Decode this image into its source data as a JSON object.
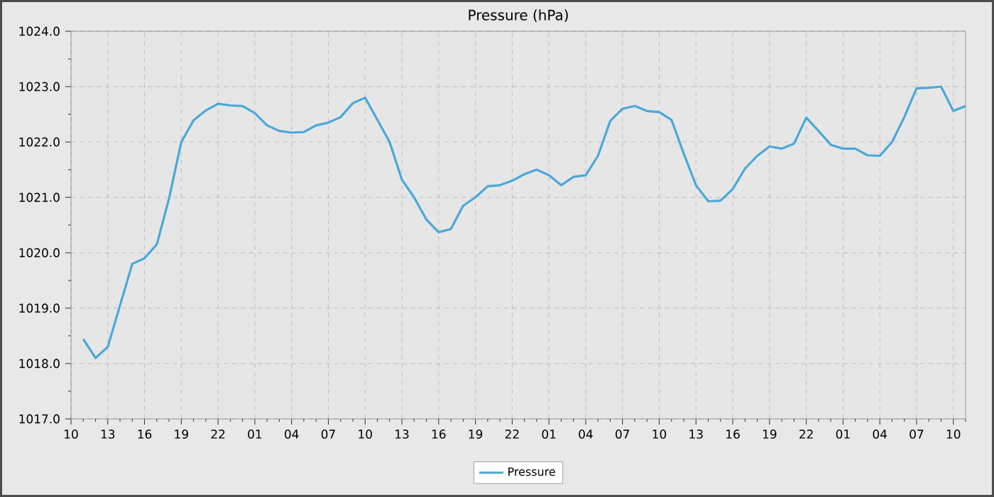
{
  "chart_data": {
    "type": "line",
    "title": "Pressure (hPa)",
    "categories": [
      "10",
      null,
      null,
      "13",
      null,
      null,
      "16",
      null,
      null,
      "19",
      null,
      null,
      "22",
      null,
      null,
      "01",
      null,
      null,
      "04",
      null,
      null,
      "07",
      null,
      null,
      "10",
      null,
      null,
      "13",
      null,
      null,
      "16",
      null,
      null,
      "19",
      null,
      null,
      "22",
      null,
      null,
      "01",
      null,
      null,
      "04",
      null,
      null,
      "07",
      null,
      null,
      "10",
      null,
      null,
      "13",
      null,
      null,
      "16",
      null,
      null,
      "19",
      null,
      null,
      "22",
      null,
      null,
      "01",
      null,
      null,
      "04",
      null,
      null,
      "07",
      null,
      null,
      "10",
      null
    ],
    "series": [
      {
        "name": "Pressure",
        "color": "#4aa8d8",
        "values": [
          null,
          1018.44,
          1018.1,
          1018.3,
          1019.05,
          1019.8,
          1019.9,
          1020.15,
          1020.98,
          1022.0,
          1022.39,
          1022.57,
          1022.69,
          1022.66,
          1022.65,
          1022.52,
          1022.3,
          1022.2,
          1022.17,
          1022.18,
          1022.3,
          1022.35,
          1022.45,
          1022.7,
          1022.8,
          1022.4,
          1022.0,
          1021.32,
          1021.0,
          1020.6,
          1020.37,
          1020.43,
          1020.85,
          1021.0,
          1021.2,
          1021.22,
          1021.3,
          1021.42,
          1021.5,
          1021.4,
          1021.22,
          1021.37,
          1021.4,
          1021.75,
          1022.38,
          1022.6,
          1022.65,
          1022.56,
          1022.54,
          1022.4,
          1021.79,
          1021.22,
          1020.93,
          1020.94,
          1021.15,
          1021.52,
          1021.75,
          1021.92,
          1021.88,
          1021.97,
          1022.44,
          1022.2,
          1021.95,
          1021.88,
          1021.88,
          1021.76,
          1021.75,
          1022.0,
          1022.45,
          1022.97,
          1022.98,
          1023.0,
          1022.56,
          1022.65
        ]
      }
    ],
    "ylim": [
      1017,
      1024
    ],
    "yticks": [
      {
        "value": 1017,
        "label": "1017.0"
      },
      {
        "value": 1018,
        "label": "1018.0"
      },
      {
        "value": 1019,
        "label": "1019.0"
      },
      {
        "value": 1020,
        "label": "1020.0"
      },
      {
        "value": 1021,
        "label": "1021.0"
      },
      {
        "value": 1022,
        "label": "1022.0"
      },
      {
        "value": 1023,
        "label": "1023.0"
      },
      {
        "value": 1024,
        "label": "1024.0"
      }
    ],
    "grid": true,
    "legend": "bottom",
    "marker": "none",
    "line_style": "solid"
  }
}
